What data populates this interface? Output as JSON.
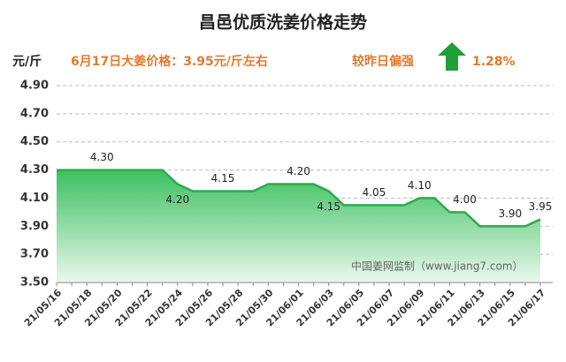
{
  "chart_data": {
    "type": "area-line",
    "title": "昌邑优质洗姜价格走势",
    "y_label": "元/斤",
    "subtitle": "6月17日大姜价格：3.95元/斤左右",
    "change_label": "较昨日偏强",
    "change_value": "1.28%",
    "watermark": "中国姜网监制（www.jiang7.com）",
    "categories": [
      "21/05/16",
      null,
      "21/05/18",
      null,
      "21/05/20",
      null,
      "21/05/22",
      null,
      "21/05/24",
      null,
      "21/05/26",
      null,
      "21/05/28",
      null,
      "21/05/30",
      null,
      "21/06/01",
      null,
      "21/06/03",
      null,
      "21/06/05",
      null,
      "21/06/07",
      null,
      "21/06/09",
      null,
      "21/06/11",
      null,
      "21/06/13",
      null,
      "21/06/15",
      null,
      "21/06/17"
    ],
    "values": [
      4.3,
      4.3,
      4.3,
      4.3,
      4.3,
      4.3,
      4.3,
      4.3,
      4.2,
      4.15,
      4.15,
      4.15,
      4.15,
      4.15,
      4.2,
      4.2,
      4.2,
      4.2,
      4.15,
      4.05,
      4.05,
      4.05,
      4.05,
      4.05,
      4.1,
      4.1,
      4.0,
      4.0,
      3.9,
      3.9,
      3.9,
      3.9,
      3.95
    ],
    "value_labels": [
      null,
      null,
      null,
      "4.30",
      null,
      null,
      null,
      null,
      "4.20",
      null,
      null,
      "4.15",
      null,
      null,
      null,
      null,
      "4.20",
      null,
      "4.15",
      null,
      null,
      "4.05",
      null,
      null,
      "4.10",
      null,
      null,
      "4.00",
      null,
      null,
      "3.90",
      null,
      "3.95"
    ],
    "color": "#2eaa4e",
    "ylim": [
      3.5,
      4.9
    ],
    "yticks": [
      {
        "value": 3.5,
        "label": "3.50"
      },
      {
        "value": 3.7,
        "label": "3.70"
      },
      {
        "value": 3.9,
        "label": "3.90"
      },
      {
        "value": 4.1,
        "label": "4.10"
      },
      {
        "value": 4.3,
        "label": "4.30"
      },
      {
        "value": 4.5,
        "label": "4.50"
      },
      {
        "value": 4.7,
        "label": "4.70"
      },
      {
        "value": 4.9,
        "label": "4.90"
      }
    ],
    "grid": true
  }
}
